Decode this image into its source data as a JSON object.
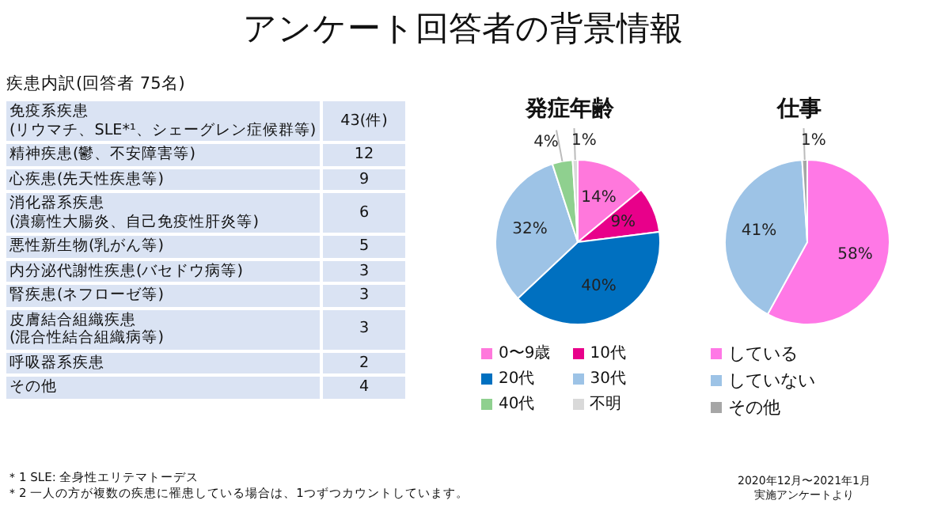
{
  "chart_data": [
    {
      "type": "other",
      "title": "アンケート回答者の背景情報",
      "subtitle": "疾患内訳(回答者 75名)",
      "categories": [
        "免疫系疾患\n(リウマチ、SLE*¹、シェーグレン症候群等)",
        "精神疾患(鬱、不安障害等)",
        "心疾患(先天性疾患等)",
        "消化器系疾患\n(潰瘍性大腸炎、自己免疫性肝炎等)",
        "悪性新生物(乳がん等)",
        "内分泌代謝性疾患(バセドウ病等)",
        "腎疾患(ネフローゼ等)",
        "皮膚結合組織疾患\n(混合性結合組織病等)",
        "呼吸器系疾患",
        "その他"
      ],
      "value_labels": [
        "43(件)",
        "12",
        "9",
        "6",
        "5",
        "3",
        "3",
        "3",
        "2",
        "4"
      ],
      "annotations": [
        "＊1 SLE: 全身性エリテマトーデス",
        "＊2 一人の方が複数の疾患に罹患している場合は、1つずつカウントしています。"
      ]
    },
    {
      "type": "pie",
      "title": "発症年齢",
      "categories": [
        "0〜9歳",
        "10代",
        "20代",
        "30代",
        "40代",
        "不明"
      ],
      "values": [
        14,
        9,
        40,
        32,
        4,
        1
      ],
      "colors": [
        "#ff78dc",
        "#e8008a",
        "#0070c0",
        "#9dc3e6",
        "#8fd08f",
        "#d9d9d9"
      ],
      "value_labels": [
        "14%",
        "9%",
        "40%",
        "32%",
        "4%",
        "1%"
      ],
      "legend": "bottom"
    },
    {
      "type": "pie",
      "title": "仕事",
      "categories": [
        "している",
        "していない",
        "その他"
      ],
      "values": [
        58,
        41,
        1
      ],
      "colors": [
        "#ff78e6",
        "#9dc3e6",
        "#a6a6a6"
      ],
      "value_labels": [
        "58%",
        "41%",
        "1%"
      ],
      "legend": "bottom",
      "annotations": [
        "2020年12月〜2021年1月",
        "実施アンケートより"
      ]
    }
  ]
}
